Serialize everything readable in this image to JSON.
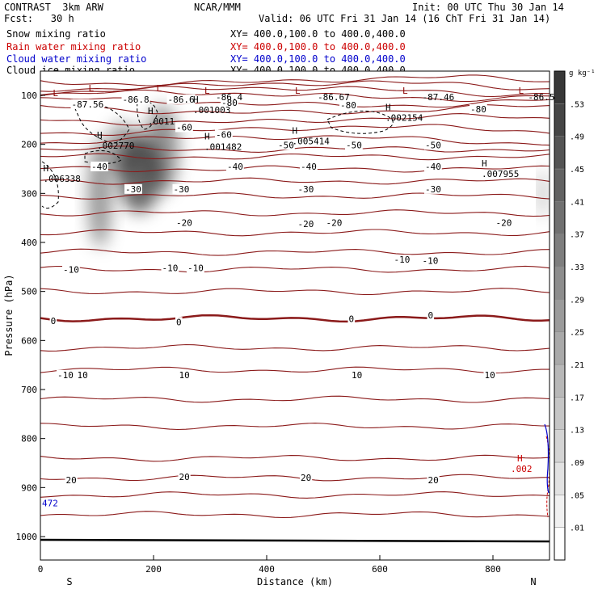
{
  "header": {
    "project": "CONTRAST  3km ARW",
    "org": "NCAR/MMM",
    "init": "Init: 00 UTC Thu 30 Jan 14",
    "fcst": "Fcst:   30 h",
    "valid": "Valid: 06 UTC Fri 31 Jan 14 (16 ChT Fri 31 Jan 14)",
    "fields": [
      {
        "name": "Snow mixing ratio",
        "xy": "XY= 400.0,100.0 to 400.0,400.0",
        "color": "#000000"
      },
      {
        "name": "Rain water mixing ratio",
        "xy": "XY= 400.0,100.0 to 400.0,400.0",
        "color": "#cc0000"
      },
      {
        "name": "Cloud water mixing ratio",
        "xy": "XY= 400.0,100.0 to 400.0,400.0",
        "color": "#0000cc"
      },
      {
        "name": "Cloud ice mixing ratio",
        "xy": "XY= 400.0,100.0 to 400.0,400.0",
        "color": "#000000"
      }
    ]
  },
  "chart_data": {
    "type": "heatmap",
    "title": "",
    "xlabel": "Distance (km)",
    "ylabel": "Pressure (hPa)",
    "xlim": [
      0,
      900
    ],
    "ylim": [
      1050,
      50
    ],
    "x_ticks": [
      "0",
      "200",
      "400",
      "600",
      "800"
    ],
    "y_ticks": [
      "100",
      "200",
      "300",
      "400",
      "500",
      "600",
      "700",
      "800",
      "900",
      "1000"
    ],
    "end_labels": {
      "left": "S",
      "right": "N"
    },
    "colorbar": {
      "unit": "g kg⁻¹",
      "levels": [
        ".01",
        ".05",
        ".09",
        ".13",
        ".17",
        ".21",
        ".25",
        ".29",
        ".33",
        ".37",
        ".41",
        ".45",
        ".49",
        ".53"
      ]
    },
    "snow_blobs": [
      {
        "x": 105,
        "p": 300,
        "rx": 22,
        "rp": 110,
        "intensity": 0.55
      },
      {
        "x": 175,
        "p": 260,
        "rx": 38,
        "rp": 80,
        "intensity": 0.85
      },
      {
        "x": 215,
        "p": 210,
        "rx": 30,
        "rp": 90,
        "intensity": 0.6
      },
      {
        "x": 145,
        "p": 210,
        "rx": 30,
        "rp": 55,
        "intensity": 0.5
      },
      {
        "x": 888,
        "p": 300,
        "rx": 6,
        "rp": 50,
        "intensity": 0.5
      }
    ],
    "isotherms": [
      {
        "p": 70,
        "label": ""
      },
      {
        "p": 80,
        "label": ""
      },
      {
        "p": 90,
        "label": ""
      },
      {
        "p": 100,
        "label": ""
      },
      {
        "p": 115,
        "label": ""
      },
      {
        "p": 130,
        "label": "-80"
      },
      {
        "p": 150,
        "label": ""
      },
      {
        "p": 170,
        "label": "-60"
      },
      {
        "p": 190,
        "label": "-50"
      },
      {
        "p": 210,
        "label": ""
      },
      {
        "p": 225,
        "label": "-40"
      },
      {
        "p": 250,
        "label": ""
      },
      {
        "p": 275,
        "label": "-30"
      },
      {
        "p": 305,
        "label": ""
      },
      {
        "p": 340,
        "label": "-20"
      },
      {
        "p": 380,
        "label": ""
      },
      {
        "p": 420,
        "label": ""
      },
      {
        "p": 455,
        "label": "-10"
      },
      {
        "p": 500,
        "label": ""
      },
      {
        "p": 555,
        "label": "0"
      },
      {
        "p": 615,
        "label": ""
      },
      {
        "p": 660,
        "label": "10"
      },
      {
        "p": 720,
        "label": ""
      },
      {
        "p": 775,
        "label": ""
      },
      {
        "p": 840,
        "label": ""
      },
      {
        "p": 880,
        "label": "20"
      },
      {
        "p": 915,
        "label": ""
      },
      {
        "p": 955,
        "label": ""
      }
    ],
    "contour_labels": [
      {
        "x": 55,
        "p": 118,
        "text": "-87.56"
      },
      {
        "x": 145,
        "p": 108,
        "text": "-86.8"
      },
      {
        "x": 225,
        "p": 108,
        "text": "-86.6"
      },
      {
        "x": 320,
        "p": 115,
        "text": "-80"
      },
      {
        "x": 530,
        "p": 120,
        "text": "-80"
      },
      {
        "x": 760,
        "p": 128,
        "text": "-80"
      },
      {
        "x": 240,
        "p": 165,
        "text": "-60"
      },
      {
        "x": 310,
        "p": 180,
        "text": "-60"
      },
      {
        "x": 420,
        "p": 201,
        "text": "-50"
      },
      {
        "x": 540,
        "p": 201,
        "text": "-50"
      },
      {
        "x": 680,
        "p": 201,
        "text": "-50"
      },
      {
        "x": 330,
        "p": 245,
        "text": "-40"
      },
      {
        "x": 460,
        "p": 245,
        "text": "-40"
      },
      {
        "x": 680,
        "p": 245,
        "text": "-40"
      },
      {
        "x": 90,
        "p": 245,
        "text": "-40"
      },
      {
        "x": 235,
        "p": 291,
        "text": "-30"
      },
      {
        "x": 455,
        "p": 291,
        "text": "-30"
      },
      {
        "x": 680,
        "p": 291,
        "text": "-30"
      },
      {
        "x": 150,
        "p": 291,
        "text": "-30"
      },
      {
        "x": 240,
        "p": 360,
        "text": "-20"
      },
      {
        "x": 455,
        "p": 362,
        "text": "-20"
      },
      {
        "x": 505,
        "p": 360,
        "text": "-20"
      },
      {
        "x": 805,
        "p": 360,
        "text": "-20"
      },
      {
        "x": 40,
        "p": 455,
        "text": "-10"
      },
      {
        "x": 215,
        "p": 452,
        "text": "-10"
      },
      {
        "x": 260,
        "p": 452,
        "text": "-10"
      },
      {
        "x": 625,
        "p": 435,
        "text": "-10"
      },
      {
        "x": 675,
        "p": 437,
        "text": "-10"
      },
      {
        "x": 18,
        "p": 560,
        "text": "0"
      },
      {
        "x": 240,
        "p": 562,
        "text": "0"
      },
      {
        "x": 545,
        "p": 556,
        "text": "0"
      },
      {
        "x": 685,
        "p": 548,
        "text": "0"
      },
      {
        "x": 30,
        "p": 670,
        "text": "-10"
      },
      {
        "x": 65,
        "p": 670,
        "text": "10"
      },
      {
        "x": 245,
        "p": 670,
        "text": "10"
      },
      {
        "x": 550,
        "p": 670,
        "text": "10"
      },
      {
        "x": 785,
        "p": 670,
        "text": "10"
      },
      {
        "x": 45,
        "p": 885,
        "text": "20"
      },
      {
        "x": 245,
        "p": 878,
        "text": "20"
      },
      {
        "x": 460,
        "p": 880,
        "text": "20"
      },
      {
        "x": 685,
        "p": 885,
        "text": "20"
      }
    ],
    "extrema_L": [
      {
        "x": 22,
        "p": 95,
        "color": "#8b0000"
      },
      {
        "x": 85,
        "p": 85,
        "color": "#8b0000"
      },
      {
        "x": 205,
        "p": 85,
        "color": "#8b0000"
      },
      {
        "x": 290,
        "p": 90,
        "color": "#8b0000"
      },
      {
        "x": 450,
        "p": 90,
        "color": "#8b0000"
      },
      {
        "x": 640,
        "p": 90,
        "color": "#8b0000"
      },
      {
        "x": 845,
        "p": 90,
        "color": "#8b0000"
      }
    ],
    "value_labels_dark": [
      {
        "x": 310,
        "p": 103,
        "text": "-86.4"
      },
      {
        "x": 490,
        "p": 103,
        "text": "-86.67"
      },
      {
        "x": 675,
        "p": 103,
        "text": "-87.46"
      },
      {
        "x": 862,
        "p": 103,
        "text": "-86.5"
      }
    ],
    "extrema_H": [
      {
        "x": 5,
        "p": 265,
        "text": ".006338"
      },
      {
        "x": 100,
        "p": 197,
        "text": ".002770"
      },
      {
        "x": 190,
        "p": 148,
        "text": ".0011"
      },
      {
        "x": 270,
        "p": 125,
        "text": ".001003"
      },
      {
        "x": 290,
        "p": 200,
        "text": ".001482"
      },
      {
        "x": 445,
        "p": 188,
        "text": ".005414"
      },
      {
        "x": 610,
        "p": 140,
        "text": ".002154"
      },
      {
        "x": 780,
        "p": 255,
        "text": ".007955"
      }
    ],
    "rain_label": {
      "x": 860,
      "p": 860,
      "text": ".002"
    },
    "cloud_water_label": {
      "x": 0,
      "p": 938,
      "text": "472"
    }
  }
}
